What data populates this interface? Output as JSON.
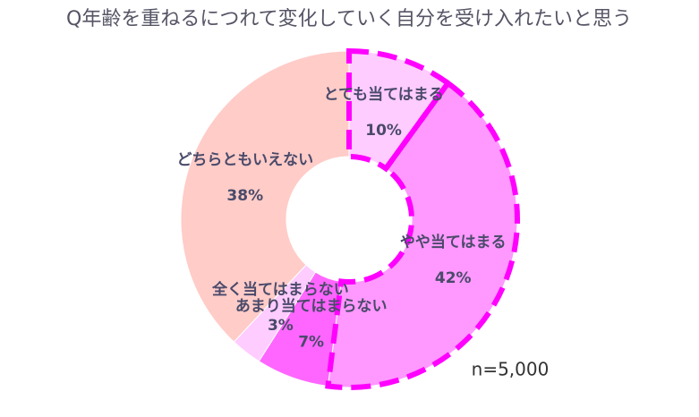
{
  "chart_data": {
    "type": "donut",
    "title": "Q年齢を重ねるにつれて変化していく自分を受け入れたいと思う",
    "categories": [
      "とても当てはまる",
      "やや当てはまる",
      "あまり当てはまらない",
      "全く当てはまらない",
      "どちらともいえない"
    ],
    "values": [
      10,
      42,
      7,
      3,
      38
    ],
    "value_labels": [
      "10%",
      "42%",
      "7%",
      "3%",
      "38%"
    ],
    "colors": [
      "#ffccff",
      "#ff99ff",
      "#ff66ff",
      "#ffccff",
      "#ffccc8"
    ],
    "note": "n=5,000"
  }
}
